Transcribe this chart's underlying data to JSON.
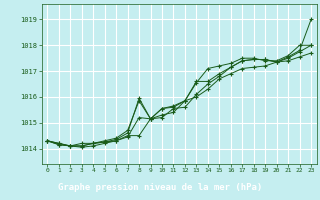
{
  "title": "Graphe pression niveau de la mer (hPa)",
  "bg_color": "#c5eef0",
  "plot_bg_color": "#c5eef0",
  "label_bg_color": "#2e7d5e",
  "grid_color": "#ffffff",
  "line_color": "#1a5c1a",
  "label_text_color": "#ffffff",
  "tick_color": "#1a5c1a",
  "xlim": [
    -0.5,
    23.5
  ],
  "ylim": [
    1013.4,
    1019.6
  ],
  "yticks": [
    1014,
    1015,
    1016,
    1017,
    1018,
    1019
  ],
  "xticks": [
    0,
    1,
    2,
    3,
    4,
    5,
    6,
    7,
    8,
    9,
    10,
    11,
    12,
    13,
    14,
    15,
    16,
    17,
    18,
    19,
    20,
    21,
    22,
    23
  ],
  "series": [
    {
      "x": [
        0,
        1,
        2,
        3,
        4,
        5,
        6,
        7,
        8,
        9,
        10,
        11,
        12,
        13,
        14,
        15,
        16,
        17,
        18,
        19,
        20,
        21,
        22,
        23
      ],
      "y": [
        1014.3,
        1014.2,
        1014.1,
        1014.1,
        1014.2,
        1014.25,
        1014.35,
        1014.6,
        1015.95,
        1015.15,
        1015.55,
        1015.65,
        1015.85,
        1016.6,
        1016.6,
        1016.9,
        1017.15,
        1017.4,
        1017.45,
        1017.45,
        1017.35,
        1017.55,
        1017.8,
        1019.0
      ]
    },
    {
      "x": [
        0,
        1,
        2,
        3,
        4,
        5,
        6,
        7,
        8,
        9,
        10,
        11,
        12,
        13,
        14,
        15,
        16,
        17,
        18,
        19,
        20,
        21,
        22,
        23
      ],
      "y": [
        1014.3,
        1014.2,
        1014.1,
        1014.1,
        1014.2,
        1014.3,
        1014.4,
        1014.7,
        1015.85,
        1015.15,
        1015.55,
        1015.6,
        1015.85,
        1016.55,
        1017.1,
        1017.2,
        1017.3,
        1017.5,
        1017.5,
        1017.4,
        1017.4,
        1017.6,
        1018.0,
        1018.0
      ]
    },
    {
      "x": [
        0,
        1,
        2,
        3,
        4,
        5,
        6,
        7,
        8,
        9,
        10,
        11,
        12,
        13,
        14,
        15,
        16,
        17,
        18,
        19,
        20,
        21,
        22,
        23
      ],
      "y": [
        1014.3,
        1014.15,
        1014.1,
        1014.05,
        1014.1,
        1014.2,
        1014.3,
        1014.45,
        1015.2,
        1015.15,
        1015.3,
        1015.4,
        1015.85,
        1016.0,
        1016.3,
        1016.7,
        1016.9,
        1017.1,
        1017.15,
        1017.2,
        1017.35,
        1017.4,
        1017.55,
        1017.7
      ]
    },
    {
      "x": [
        0,
        1,
        2,
        3,
        4,
        5,
        6,
        7,
        8,
        9,
        10,
        11,
        12,
        13,
        14,
        15,
        16,
        17,
        18,
        19,
        20,
        21,
        22,
        23
      ],
      "y": [
        1014.3,
        1014.15,
        1014.1,
        1014.2,
        1014.2,
        1014.25,
        1014.3,
        1014.5,
        1014.5,
        1015.15,
        1015.2,
        1015.55,
        1015.6,
        1016.1,
        1016.5,
        1016.8,
        1017.15,
        1017.4,
        1017.45,
        1017.45,
        1017.35,
        1017.5,
        1017.75,
        1018.0
      ]
    }
  ]
}
